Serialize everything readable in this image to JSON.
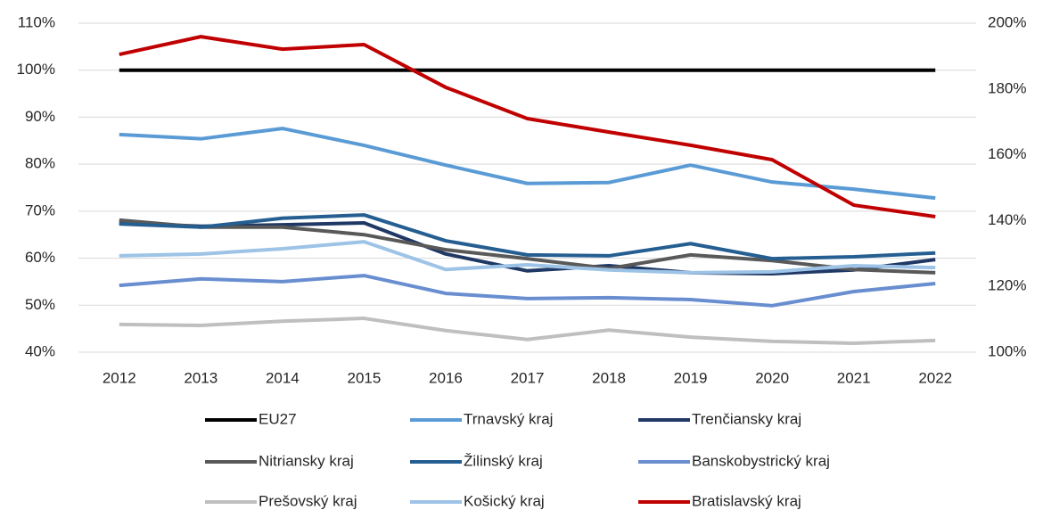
{
  "chart_data": {
    "type": "line",
    "categories": [
      "2012",
      "2013",
      "2014",
      "2015",
      "2016",
      "2017",
      "2018",
      "2019",
      "2020",
      "2021",
      "2022"
    ],
    "ylim": [
      40,
      110
    ],
    "yticks": [
      {
        "value": 40,
        "label": "40%"
      },
      {
        "value": 50,
        "label": "50%"
      },
      {
        "value": 60,
        "label": "60%"
      },
      {
        "value": 70,
        "label": "70%"
      },
      {
        "value": 80,
        "label": "80%"
      },
      {
        "value": 90,
        "label": "90%"
      },
      {
        "value": 100,
        "label": "100%"
      },
      {
        "value": 110,
        "label": "110%"
      }
    ],
    "y2lim": [
      100,
      200
    ],
    "y2ticks": [
      {
        "value": 100,
        "label": "100%"
      },
      {
        "value": 120,
        "label": "120%"
      },
      {
        "value": 140,
        "label": "140%"
      },
      {
        "value": 160,
        "label": "160%"
      },
      {
        "value": 180,
        "label": "180%"
      },
      {
        "value": 200,
        "label": "200%"
      }
    ],
    "grid": true,
    "legend": "bottom",
    "series": [
      {
        "name": "EU27",
        "color": "#000000",
        "values": [
          100,
          100,
          100,
          100,
          100,
          100,
          100,
          100,
          100,
          100,
          100
        ]
      },
      {
        "name": "Trnavský kraj",
        "color": "#5b9bd5",
        "values": [
          86.3,
          85.4,
          87.6,
          84.0,
          79.8,
          75.9,
          76.1,
          79.8,
          76.2,
          74.7,
          72.8
        ]
      },
      {
        "name": "Trenčiansky kraj",
        "color": "#1f3864",
        "values": [
          67.5,
          66.8,
          67.1,
          67.5,
          60.9,
          57.3,
          58.4,
          56.9,
          56.7,
          57.5,
          59.7
        ]
      },
      {
        "name": "Nitriansky kraj",
        "color": "#595959",
        "values": [
          68.1,
          66.6,
          66.6,
          65.0,
          61.8,
          59.9,
          57.8,
          60.7,
          59.5,
          57.6,
          56.9
        ]
      },
      {
        "name": "Žilinský kraj",
        "color": "#255e91",
        "values": [
          67.3,
          66.6,
          68.5,
          69.2,
          63.7,
          60.7,
          60.5,
          63.1,
          59.9,
          60.3,
          61.1
        ]
      },
      {
        "name": "Banskobystrický kraj",
        "color": "#698ed0",
        "values": [
          54.2,
          55.6,
          55.0,
          56.3,
          52.5,
          51.4,
          51.6,
          51.2,
          49.9,
          52.9,
          54.6
        ]
      },
      {
        "name": "Prešovský kraj",
        "color": "#bfbfbf",
        "values": [
          45.9,
          45.7,
          46.6,
          47.2,
          44.6,
          42.7,
          44.7,
          43.2,
          42.3,
          41.9,
          42.5
        ]
      },
      {
        "name": "Košický kraj",
        "color": "#9dc3e6",
        "values": [
          60.5,
          60.9,
          62.0,
          63.5,
          57.6,
          58.6,
          57.5,
          56.9,
          57.1,
          58.4,
          58.0
        ]
      },
      {
        "name": "Bratislavský kraj",
        "color": "#c00000",
        "axis": "y2",
        "values": [
          190.5,
          195.9,
          192.1,
          193.5,
          180.5,
          171.0,
          166.9,
          162.9,
          158.5,
          144.7,
          141.2
        ]
      }
    ]
  }
}
